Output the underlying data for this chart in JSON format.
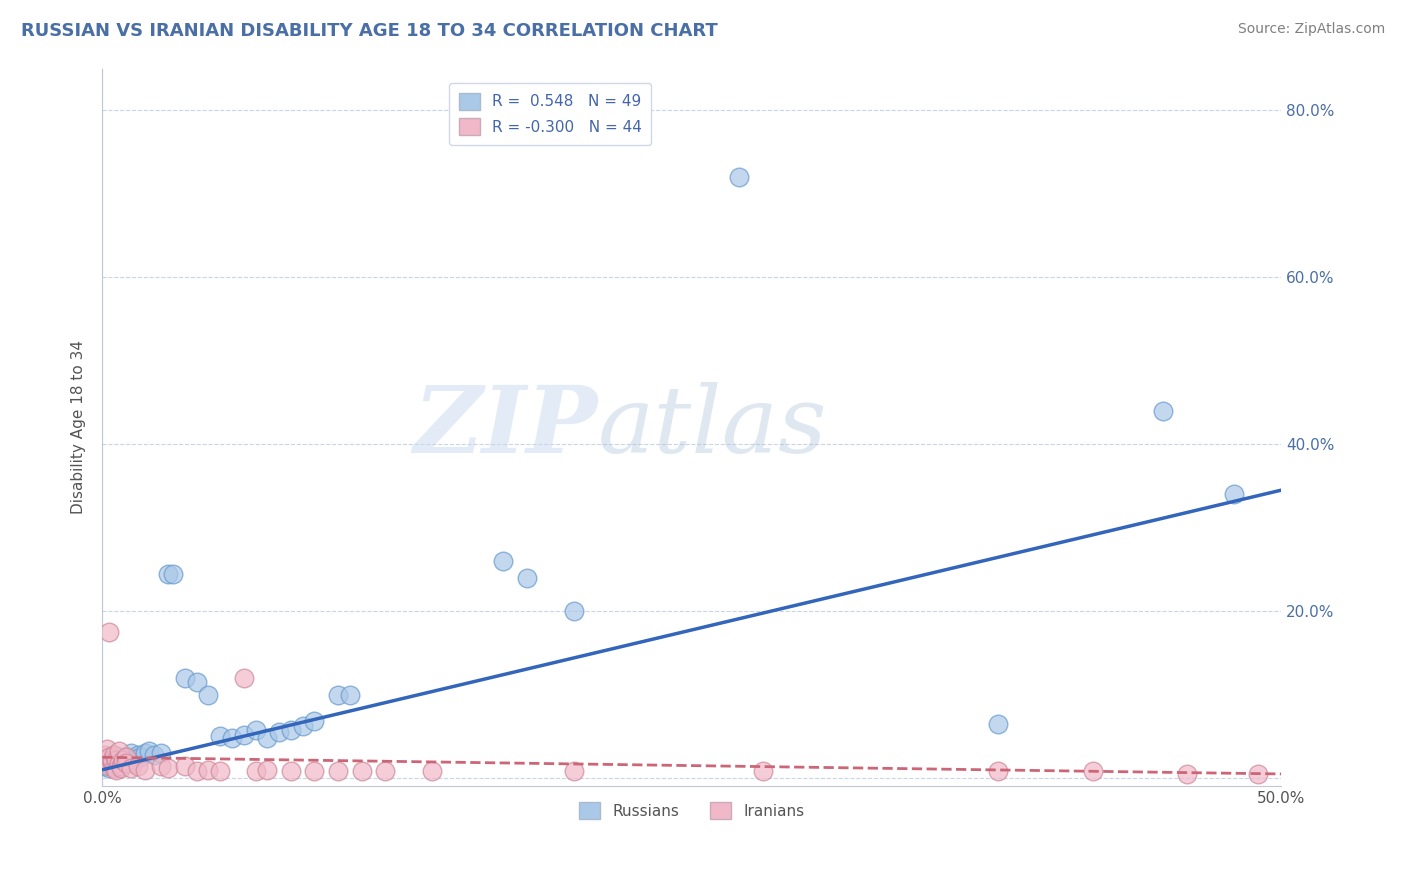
{
  "title": "RUSSIAN VS IRANIAN DISABILITY AGE 18 TO 34 CORRELATION CHART",
  "source": "Source: ZipAtlas.com",
  "ylabel": "Disability Age 18 to 34",
  "xlim": [
    0.0,
    0.5
  ],
  "ylim": [
    -0.01,
    0.85
  ],
  "y_ticks": [
    0.0,
    0.2,
    0.4,
    0.6,
    0.8
  ],
  "y_tick_labels": [
    "",
    "20.0%",
    "40.0%",
    "60.0%",
    "80.0%"
  ],
  "russian_color_fill": "#aac8e8",
  "russian_color_edge": "#6699cc",
  "iranian_color_fill": "#f0b8c8",
  "iranian_color_edge": "#cc8899",
  "russian_line_color": "#3366bb",
  "iranian_line_color": "#cc6677",
  "watermark_zip": "ZIP",
  "watermark_atlas": "atlas",
  "title_color": "#4a6fa5",
  "source_color": "#808080",
  "background_color": "#ffffff",
  "grid_color": "#c8d4e8",
  "legend_box_russian": "#aac8e8",
  "legend_box_iranian": "#f0b8c8",
  "legend_text_color": "#4466aa",
  "russians_scatter": [
    [
      0.001,
      0.02
    ],
    [
      0.001,
      0.015
    ],
    [
      0.002,
      0.022
    ],
    [
      0.002,
      0.018
    ],
    [
      0.003,
      0.025
    ],
    [
      0.003,
      0.012
    ],
    [
      0.004,
      0.02
    ],
    [
      0.004,
      0.018
    ],
    [
      0.005,
      0.022
    ],
    [
      0.005,
      0.028
    ],
    [
      0.006,
      0.015
    ],
    [
      0.006,
      0.02
    ],
    [
      0.007,
      0.025
    ],
    [
      0.008,
      0.018
    ],
    [
      0.009,
      0.022
    ],
    [
      0.01,
      0.02
    ],
    [
      0.011,
      0.025
    ],
    [
      0.012,
      0.03
    ],
    [
      0.013,
      0.018
    ],
    [
      0.014,
      0.022
    ],
    [
      0.015,
      0.028
    ],
    [
      0.016,
      0.025
    ],
    [
      0.018,
      0.03
    ],
    [
      0.02,
      0.032
    ],
    [
      0.022,
      0.028
    ],
    [
      0.025,
      0.03
    ],
    [
      0.028,
      0.245
    ],
    [
      0.03,
      0.245
    ],
    [
      0.035,
      0.12
    ],
    [
      0.04,
      0.115
    ],
    [
      0.045,
      0.1
    ],
    [
      0.05,
      0.05
    ],
    [
      0.055,
      0.048
    ],
    [
      0.06,
      0.052
    ],
    [
      0.065,
      0.058
    ],
    [
      0.07,
      0.048
    ],
    [
      0.075,
      0.055
    ],
    [
      0.08,
      0.058
    ],
    [
      0.085,
      0.062
    ],
    [
      0.09,
      0.068
    ],
    [
      0.1,
      0.1
    ],
    [
      0.105,
      0.1
    ],
    [
      0.17,
      0.26
    ],
    [
      0.18,
      0.24
    ],
    [
      0.2,
      0.2
    ],
    [
      0.27,
      0.72
    ],
    [
      0.38,
      0.065
    ],
    [
      0.45,
      0.44
    ],
    [
      0.48,
      0.34
    ]
  ],
  "iranians_scatter": [
    [
      0.001,
      0.028
    ],
    [
      0.001,
      0.022
    ],
    [
      0.002,
      0.02
    ],
    [
      0.002,
      0.035
    ],
    [
      0.003,
      0.015
    ],
    [
      0.003,
      0.025
    ],
    [
      0.003,
      0.175
    ],
    [
      0.004,
      0.018
    ],
    [
      0.004,
      0.022
    ],
    [
      0.005,
      0.028
    ],
    [
      0.005,
      0.012
    ],
    [
      0.006,
      0.022
    ],
    [
      0.006,
      0.01
    ],
    [
      0.007,
      0.018
    ],
    [
      0.007,
      0.032
    ],
    [
      0.008,
      0.015
    ],
    [
      0.008,
      0.012
    ],
    [
      0.009,
      0.022
    ],
    [
      0.01,
      0.025
    ],
    [
      0.01,
      0.018
    ],
    [
      0.012,
      0.012
    ],
    [
      0.015,
      0.015
    ],
    [
      0.018,
      0.01
    ],
    [
      0.025,
      0.015
    ],
    [
      0.028,
      0.012
    ],
    [
      0.035,
      0.015
    ],
    [
      0.04,
      0.008
    ],
    [
      0.045,
      0.01
    ],
    [
      0.05,
      0.008
    ],
    [
      0.06,
      0.12
    ],
    [
      0.065,
      0.008
    ],
    [
      0.07,
      0.01
    ],
    [
      0.08,
      0.008
    ],
    [
      0.09,
      0.008
    ],
    [
      0.1,
      0.008
    ],
    [
      0.11,
      0.008
    ],
    [
      0.12,
      0.008
    ],
    [
      0.14,
      0.008
    ],
    [
      0.2,
      0.008
    ],
    [
      0.28,
      0.008
    ],
    [
      0.38,
      0.008
    ],
    [
      0.42,
      0.008
    ],
    [
      0.46,
      0.005
    ],
    [
      0.49,
      0.005
    ]
  ],
  "rus_line_x0": 0.0,
  "rus_line_y0": 0.01,
  "rus_line_x1": 0.5,
  "rus_line_y1": 0.345,
  "ira_line_x0": 0.0,
  "ira_line_y0": 0.025,
  "ira_line_x1": 0.5,
  "ira_line_y1": 0.005
}
